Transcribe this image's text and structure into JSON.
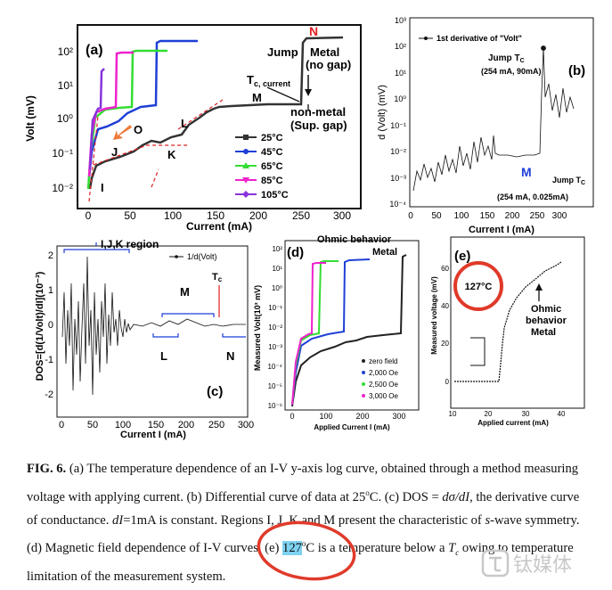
{
  "panel_a": {
    "letter": "(a)",
    "ylabel": "Volt (mV)",
    "xlabel": "Current (mA)",
    "x_ticks": [
      "0",
      "50",
      "100",
      "150",
      "200",
      "250",
      "300"
    ],
    "y_ticks": [
      "10²",
      "10¹",
      "10⁰",
      "10⁻¹",
      "10⁻²"
    ],
    "letter_n": "N",
    "jump": "Jump",
    "metal_line1": "Metal",
    "metal_line2": "(no gap)",
    "tc_current": "T",
    "tc_sub": "c, current",
    "label_m": "M",
    "nonmetal_line1": "non-metal",
    "nonmetal_line2": "(Sup. gap)",
    "label_l": "L",
    "label_o": "O",
    "label_j": "J",
    "label_k": "K",
    "label_i": "I",
    "legend": [
      "25°C",
      "45°C",
      "65°C",
      "85°C",
      "105°C"
    ],
    "colors": {
      "c25": "#333333",
      "c45": "#1f3fd6",
      "c65": "#33dd33",
      "c85": "#ee22cc",
      "c105": "#8833dd",
      "arrow": "#f07a3a",
      "dashed": "#e02020"
    }
  },
  "panel_b": {
    "letter": "(b)",
    "ylabel": "d (Volt) (mV)",
    "xlabel": "Current I (mA)",
    "legend": "1st derivative of \"Volt\"",
    "jump_top": "Jump T",
    "jump_top_sub": "C",
    "jump_top_val": "(254 mA, 90mA)",
    "label_m": "M",
    "jump_bottom": "Jump T",
    "jump_bottom_sub": "C",
    "jump_bottom_val": "(254 mA, 0.025mA)",
    "x_ticks": [
      "0",
      "50",
      "100",
      "150",
      "200",
      "250",
      "300"
    ],
    "y_ticks": [
      "10³",
      "10²",
      "10¹",
      "10⁰",
      "10⁻¹",
      "10⁻²",
      "10⁻³",
      "10⁻⁴"
    ]
  },
  "panel_c": {
    "letter": "(c)",
    "ylabel": "DOS=[d(1/Volt)/dI](10⁻³)",
    "xlabel": "Current I (mA)",
    "region": "I,J,K region",
    "legend": "1/d(Volt)",
    "tc": "T",
    "tc_sub": "c",
    "label_m": "M",
    "label_l": "L",
    "label_n": "N",
    "x_ticks": [
      "0",
      "50",
      "100",
      "150",
      "200",
      "250",
      "300"
    ],
    "y_ticks": [
      "2",
      "1",
      "0",
      "-1",
      "-2"
    ]
  },
  "panel_d": {
    "letter": "(d)",
    "title1": "Ohmic behavior",
    "title2": "Metal",
    "ylabel": "Measured Volt(10³ mV)",
    "xlabel": "Applied Current I (mA)",
    "legend": [
      "zero field",
      "2,000 Oe",
      "2,500 Oe",
      "3,000 Oe"
    ],
    "x_ticks": [
      "0",
      "100",
      "200",
      "300"
    ],
    "y_ticks": [
      "10²",
      "10¹",
      "10⁰",
      "10⁻¹",
      "10⁻²",
      "10⁻³",
      "10⁻⁴",
      "10⁻⁵",
      "10⁻⁶"
    ]
  },
  "panel_e": {
    "letter": "(e)",
    "temp": "127°C",
    "ohmic1": "Ohmic",
    "ohmic2": "behavior",
    "ohmic3": "Metal",
    "ylabel": "Measured voltage (mV)",
    "xlabel": "Applied current (mA)",
    "x_ticks": [
      "10",
      "20",
      "30",
      "40"
    ],
    "y_ticks": [
      "0",
      "20",
      "40",
      "60"
    ]
  },
  "caption": {
    "fig": "FIG. 6.",
    "part1": " (a) The temperature dependence of an I-V y-axis log curve, obtained through a method measuring voltage with applying current. (b) Differential curve of data at 25",
    "part2": "C. (c) DOS = ",
    "formula": "dσ/dI",
    "part3": ", the derivative curve of conductance. ",
    "di": "dI",
    "part4": "=1mA is constant. Regions I, J, K and M present the characteristic of ",
    "swave": "s",
    "part5": "-wave symmetry. (d) Magnetic field dependence of I-V curves. (e) ",
    "highlight": "127",
    "part6": "C is a temperature below a ",
    "tc": "T",
    "tc_sub": "c",
    "part7": " owing to temperature limitation of the measurement system.",
    "deg": "o"
  },
  "watermark": "钛媒体"
}
